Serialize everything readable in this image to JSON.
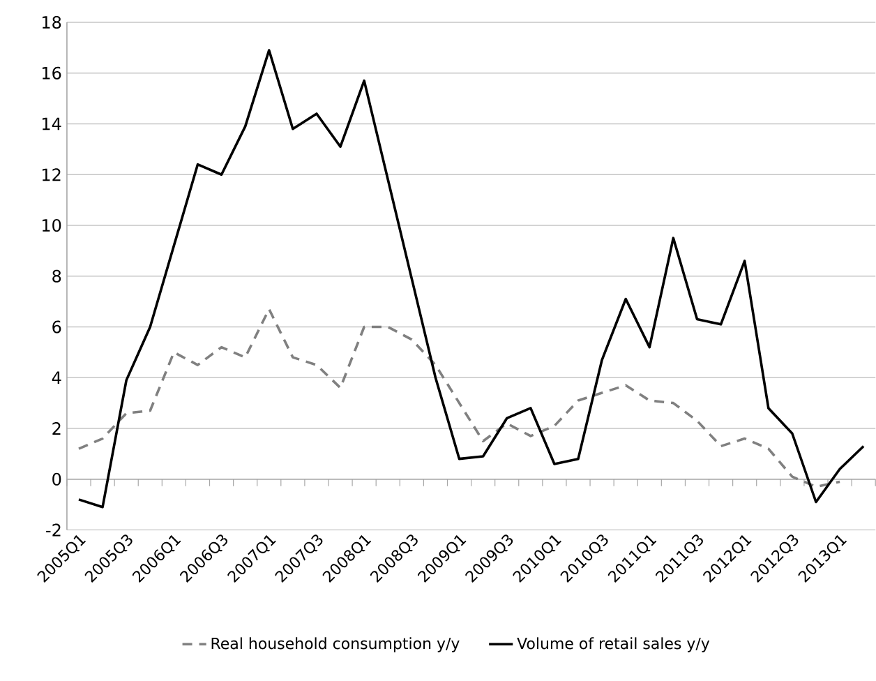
{
  "chart_data": {
    "type": "line",
    "categories": [
      "2005Q1",
      null,
      "2005Q3",
      null,
      "2006Q1",
      null,
      "2006Q3",
      null,
      "2007Q1",
      null,
      "2007Q3",
      null,
      "2008Q1",
      null,
      "2008Q3",
      null,
      "2009Q1",
      null,
      "2009Q3",
      null,
      "2010Q1",
      null,
      "2010Q3",
      null,
      "2011Q1",
      null,
      "2011Q3",
      null,
      "2012Q1",
      null,
      "2012Q3",
      null,
      "2013Q1",
      null
    ],
    "series": [
      {
        "name": "Real household consumption  y/y",
        "color": "#808080",
        "line_style": "dashed",
        "values": [
          1.2,
          1.6,
          2.6,
          2.7,
          5.0,
          4.5,
          5.2,
          4.8,
          6.7,
          4.8,
          4.5,
          3.6,
          6.0,
          6.0,
          5.5,
          4.5,
          3.0,
          1.5,
          2.2,
          1.7,
          2.1,
          3.1,
          3.4,
          3.7,
          3.1,
          3.0,
          2.3,
          1.3,
          1.6,
          1.2,
          0.1,
          -0.3,
          -0.1,
          null
        ]
      },
      {
        "name": "Volume of retail sales y/y",
        "color": "#000000",
        "line_style": "solid",
        "values": [
          -0.8,
          -1.1,
          3.9,
          6.0,
          9.2,
          12.4,
          12.0,
          13.9,
          16.9,
          13.8,
          14.4,
          13.1,
          15.7,
          11.8,
          7.9,
          4.0,
          0.8,
          0.9,
          2.4,
          2.8,
          0.6,
          0.8,
          4.7,
          7.1,
          5.2,
          9.5,
          6.3,
          6.1,
          8.6,
          2.8,
          1.8,
          -0.9,
          0.4,
          1.3
        ]
      }
    ],
    "ylim": [
      -2,
      18
    ],
    "yticks": [
      -2,
      0,
      2,
      4,
      6,
      8,
      10,
      12,
      14,
      16,
      18
    ],
    "grid": "y",
    "legend": "bottom"
  }
}
